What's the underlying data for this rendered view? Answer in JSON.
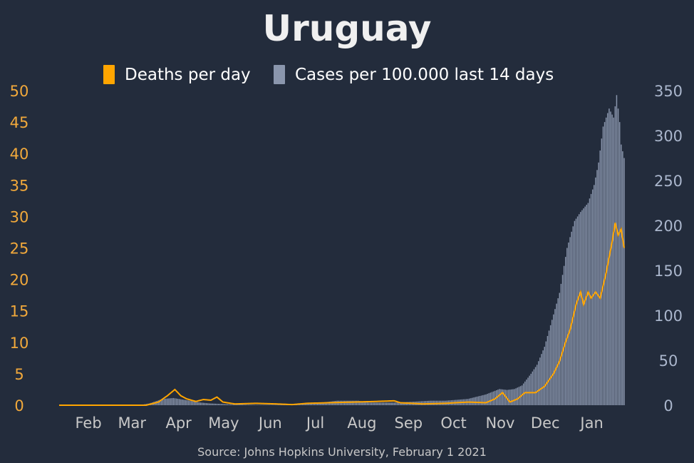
{
  "chart_data": {
    "type": "bar",
    "title": "Uruguay",
    "source": "Source: Johns Hopkins University, February 1 2021",
    "legend_position": "top",
    "grid": false,
    "x_range": [
      "2020-01-22",
      "2021-02-01"
    ],
    "x_ticks": [
      {
        "date": "2020-02-01",
        "label": "Feb"
      },
      {
        "date": "2020-03-01",
        "label": "Mar"
      },
      {
        "date": "2020-04-01",
        "label": "Apr"
      },
      {
        "date": "2020-05-01",
        "label": "May"
      },
      {
        "date": "2020-06-01",
        "label": "Jun"
      },
      {
        "date": "2020-07-01",
        "label": "Jul"
      },
      {
        "date": "2020-08-01",
        "label": "Aug"
      },
      {
        "date": "2020-09-01",
        "label": "Sep"
      },
      {
        "date": "2020-10-01",
        "label": "Oct"
      },
      {
        "date": "2020-11-01",
        "label": "Nov"
      },
      {
        "date": "2020-12-01",
        "label": "Dec"
      },
      {
        "date": "2021-01-01",
        "label": "Jan"
      }
    ],
    "y_left": {
      "min": 0,
      "max": 50,
      "ticks": [
        0,
        5,
        10,
        15,
        20,
        25,
        30,
        35,
        40,
        45,
        50
      ],
      "color": "#f2a93b"
    },
    "y_right": {
      "min": 0,
      "max": 350,
      "ticks": [
        0,
        50,
        100,
        150,
        200,
        250,
        300,
        350
      ],
      "color": "#aab6cc"
    },
    "series": [
      {
        "name": "Deaths per day",
        "kind": "line",
        "axis": "left",
        "color": "#ffa500",
        "points": [
          [
            "2020-01-22",
            0
          ],
          [
            "2020-03-20",
            0
          ],
          [
            "2020-03-28",
            0.5
          ],
          [
            "2020-04-03",
            1.5
          ],
          [
            "2020-04-08",
            2.5
          ],
          [
            "2020-04-12",
            1.5
          ],
          [
            "2020-04-16",
            1
          ],
          [
            "2020-04-22",
            0.6
          ],
          [
            "2020-04-27",
            0.9
          ],
          [
            "2020-05-02",
            0.8
          ],
          [
            "2020-05-06",
            1.3
          ],
          [
            "2020-05-10",
            0.5
          ],
          [
            "2020-05-18",
            0.2
          ],
          [
            "2020-06-01",
            0.3
          ],
          [
            "2020-06-15",
            0.2
          ],
          [
            "2020-06-25",
            0.1
          ],
          [
            "2020-07-05",
            0.3
          ],
          [
            "2020-07-20",
            0.4
          ],
          [
            "2020-08-05",
            0.5
          ],
          [
            "2020-08-20",
            0.6
          ],
          [
            "2020-09-01",
            0.7
          ],
          [
            "2020-09-05",
            0.4
          ],
          [
            "2020-09-20",
            0.2
          ],
          [
            "2020-10-05",
            0.3
          ],
          [
            "2020-10-20",
            0.5
          ],
          [
            "2020-11-01",
            0.4
          ],
          [
            "2020-11-07",
            1
          ],
          [
            "2020-11-12",
            2
          ],
          [
            "2020-11-17",
            0.5
          ],
          [
            "2020-11-22",
            1
          ],
          [
            "2020-11-27",
            2
          ],
          [
            "2020-12-04",
            2
          ],
          [
            "2020-12-10",
            3
          ],
          [
            "2020-12-16",
            5
          ],
          [
            "2020-12-20",
            7
          ],
          [
            "2020-12-24",
            10
          ],
          [
            "2020-12-27",
            12
          ],
          [
            "2020-12-31",
            16
          ],
          [
            "2021-01-03",
            18
          ],
          [
            "2021-01-05",
            16
          ],
          [
            "2021-01-08",
            18
          ],
          [
            "2021-01-10",
            17
          ],
          [
            "2021-01-13",
            18
          ],
          [
            "2021-01-16",
            17
          ],
          [
            "2021-01-20",
            21
          ],
          [
            "2021-01-24",
            26
          ],
          [
            "2021-01-26",
            29
          ],
          [
            "2021-01-28",
            27
          ],
          [
            "2021-01-30",
            28
          ],
          [
            "2021-02-01",
            25
          ]
        ]
      },
      {
        "name": "Cases per 100.000 last 14 days",
        "kind": "bar",
        "axis": "right",
        "color": "#8a96ad",
        "points": [
          [
            "2020-01-22",
            0
          ],
          [
            "2020-03-15",
            0
          ],
          [
            "2020-03-22",
            2
          ],
          [
            "2020-03-31",
            7
          ],
          [
            "2020-04-07",
            8
          ],
          [
            "2020-04-18",
            5
          ],
          [
            "2020-04-25",
            3
          ],
          [
            "2020-05-01",
            2
          ],
          [
            "2020-05-15",
            1
          ],
          [
            "2020-06-01",
            0.5
          ],
          [
            "2020-06-20",
            0.5
          ],
          [
            "2020-07-01",
            1
          ],
          [
            "2020-07-15",
            3
          ],
          [
            "2020-07-25",
            5
          ],
          [
            "2020-08-08",
            5
          ],
          [
            "2020-08-15",
            3
          ],
          [
            "2020-09-01",
            3
          ],
          [
            "2020-09-15",
            4
          ],
          [
            "2020-09-25",
            5
          ],
          [
            "2020-10-05",
            5
          ],
          [
            "2020-10-20",
            7
          ],
          [
            "2020-11-01",
            12
          ],
          [
            "2020-11-10",
            18
          ],
          [
            "2020-11-15",
            17
          ],
          [
            "2020-11-20",
            18
          ],
          [
            "2020-11-25",
            22
          ],
          [
            "2020-12-01",
            35
          ],
          [
            "2020-12-05",
            45
          ],
          [
            "2020-12-10",
            65
          ],
          [
            "2020-12-15",
            95
          ],
          [
            "2020-12-20",
            125
          ],
          [
            "2020-12-25",
            175
          ],
          [
            "2020-12-30",
            205
          ],
          [
            "2021-01-03",
            215
          ],
          [
            "2021-01-08",
            225
          ],
          [
            "2021-01-12",
            245
          ],
          [
            "2021-01-15",
            270
          ],
          [
            "2021-01-18",
            310
          ],
          [
            "2021-01-22",
            330
          ],
          [
            "2021-01-25",
            320
          ],
          [
            "2021-01-27",
            345
          ],
          [
            "2021-01-29",
            315
          ],
          [
            "2021-01-30",
            290
          ],
          [
            "2021-02-01",
            275
          ]
        ]
      }
    ]
  }
}
